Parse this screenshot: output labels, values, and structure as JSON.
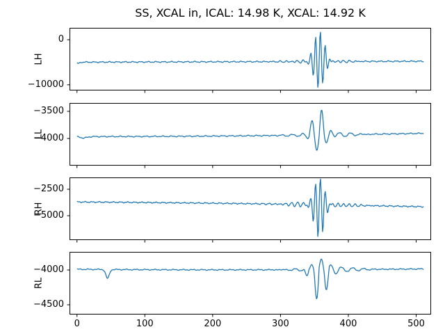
{
  "title": "SS, XCAL in, ICAL: 14.98 K, XCAL: 14.92 K",
  "chart_data": {
    "type": "line",
    "line_color": "#1f77b4",
    "background": "#ffffff",
    "legend": "none",
    "grid": false,
    "x": {
      "start": 0,
      "end": 511,
      "lim": [
        -11,
        522
      ],
      "ticks": [
        0,
        100,
        200,
        300,
        400,
        500
      ],
      "tick_labels": [
        "0",
        "100",
        "200",
        "300",
        "400",
        "500"
      ]
    },
    "subplots": [
      {
        "ylabel": "LH",
        "ylim": [
          -11260,
          2640
        ],
        "yticks": [
          0,
          -10000
        ],
        "ytick_labels": [
          "0",
          "−10000"
        ],
        "baseline": {
          "start": -4980,
          "end": -4780,
          "sag": 0
        },
        "noise": [
          [
            90,
            0.55,
            0.3
          ],
          [
            60,
            1.3,
            2.1
          ]
        ],
        "bursts": [
          {
            "center": 357,
            "sigma": 8,
            "wavelength": 7,
            "amp_pos": 6450,
            "amp_neg": 5600
          },
          {
            "center": 357,
            "sigma": 32,
            "wavelength": 8.5,
            "amp_pos": 420,
            "amp_neg": 420
          }
        ],
        "notches": [
          {
            "center": 2,
            "sigma": 2,
            "depth": 300
          }
        ]
      },
      {
        "ylabel": "LL",
        "ylim": [
          -4500,
          -3346
        ],
        "yticks": [
          -3500,
          -4000
        ],
        "ytick_labels": [
          "−3500",
          "−4000"
        ],
        "baseline": {
          "start": -3965,
          "end": -3905,
          "sag": -15
        },
        "noise": [
          [
            7,
            0.5,
            1.0
          ],
          [
            5,
            1.1,
            0.4
          ]
        ],
        "bursts": [
          {
            "center": 357,
            "sigma": 10,
            "wavelength": 15,
            "amp_pos": 555,
            "amp_neg": 360
          },
          {
            "center": 365,
            "sigma": 30,
            "wavelength": 17,
            "amp_pos": 55,
            "amp_neg": 55
          }
        ],
        "notches": [
          {
            "center": 10,
            "sigma": 5,
            "depth": 25
          }
        ]
      },
      {
        "ylabel": "RH",
        "ylim": [
          -7303,
          -1382
        ],
        "yticks": [
          -2500,
          -5000
        ],
        "ytick_labels": [
          "−2500",
          "−5000"
        ],
        "baseline": {
          "start": -3700,
          "end": -4150,
          "sag": 60
        },
        "noise": [
          [
            40,
            0.6,
            0.8
          ],
          [
            28,
            1.5,
            2.0
          ]
        ],
        "bursts": [
          {
            "center": 357,
            "sigma": 8,
            "wavelength": 7,
            "amp_pos": 2250,
            "amp_neg": 2900
          },
          {
            "center": 357,
            "sigma": 36,
            "wavelength": 8.5,
            "amp_pos": 280,
            "amp_neg": 280
          }
        ],
        "notches": []
      },
      {
        "ylabel": "RL",
        "ylim": [
          -4640,
          -3740
        ],
        "yticks": [
          -4000,
          -4500
        ],
        "ytick_labels": [
          "−4000",
          "−4500"
        ],
        "baseline": {
          "start": -3990,
          "end": -3985,
          "sag": -10
        },
        "noise": [
          [
            5,
            0.45,
            0.2
          ],
          [
            4,
            1.2,
            1.5
          ]
        ],
        "bursts": [
          {
            "center": 357,
            "sigma": 11,
            "wavelength": 15,
            "amp_pos": 180,
            "amp_neg": 480
          },
          {
            "center": 368,
            "sigma": 32,
            "wavelength": 17,
            "amp_pos": 45,
            "amp_neg": 45
          }
        ],
        "notches": [
          {
            "center": 45,
            "sigma": 2.5,
            "depth": 130
          }
        ]
      }
    ]
  }
}
